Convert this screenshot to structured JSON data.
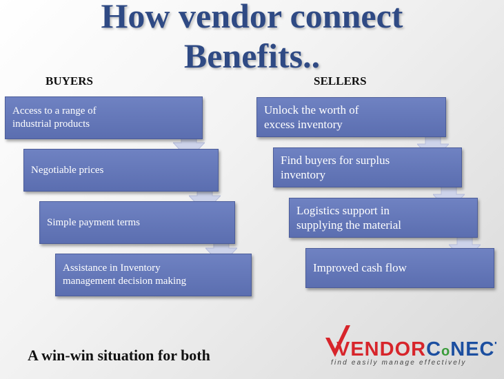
{
  "title": {
    "line1": "How vendor connect",
    "line2": "Benefits.."
  },
  "buyers": {
    "heading": "BUYERS",
    "steps": [
      {
        "line1": "Access to a range of",
        "line2": "industrial products"
      },
      {
        "line1": "Negotiable prices",
        "line2": ""
      },
      {
        "line1": "Simple payment terms",
        "line2": ""
      },
      {
        "line1": "Assistance in Inventory",
        "line2": "management  decision making"
      }
    ]
  },
  "sellers": {
    "heading": "SELLERS",
    "steps": [
      {
        "line1": "Unlock the worth of",
        "line2": "excess inventory"
      },
      {
        "line1": "Find buyers for surplus",
        "line2": "inventory"
      },
      {
        "line1": "Logistics support in",
        "line2": "supplying the material"
      },
      {
        "line1": "Improved cash flow",
        "line2": ""
      }
    ]
  },
  "footer": "A win-win situation for both",
  "logo": {
    "vendor": "VENDOR",
    "c": "C",
    "o": "o",
    "nect": "NECT",
    "tagline": "find easily manage effectively"
  },
  "colors": {
    "box": "#6070b4",
    "arrow": "#cdd3ea",
    "title": "#2f4a84",
    "logo_red": "#d7252b",
    "logo_blue": "#1c4fa0",
    "logo_green": "#3a9c3a"
  }
}
